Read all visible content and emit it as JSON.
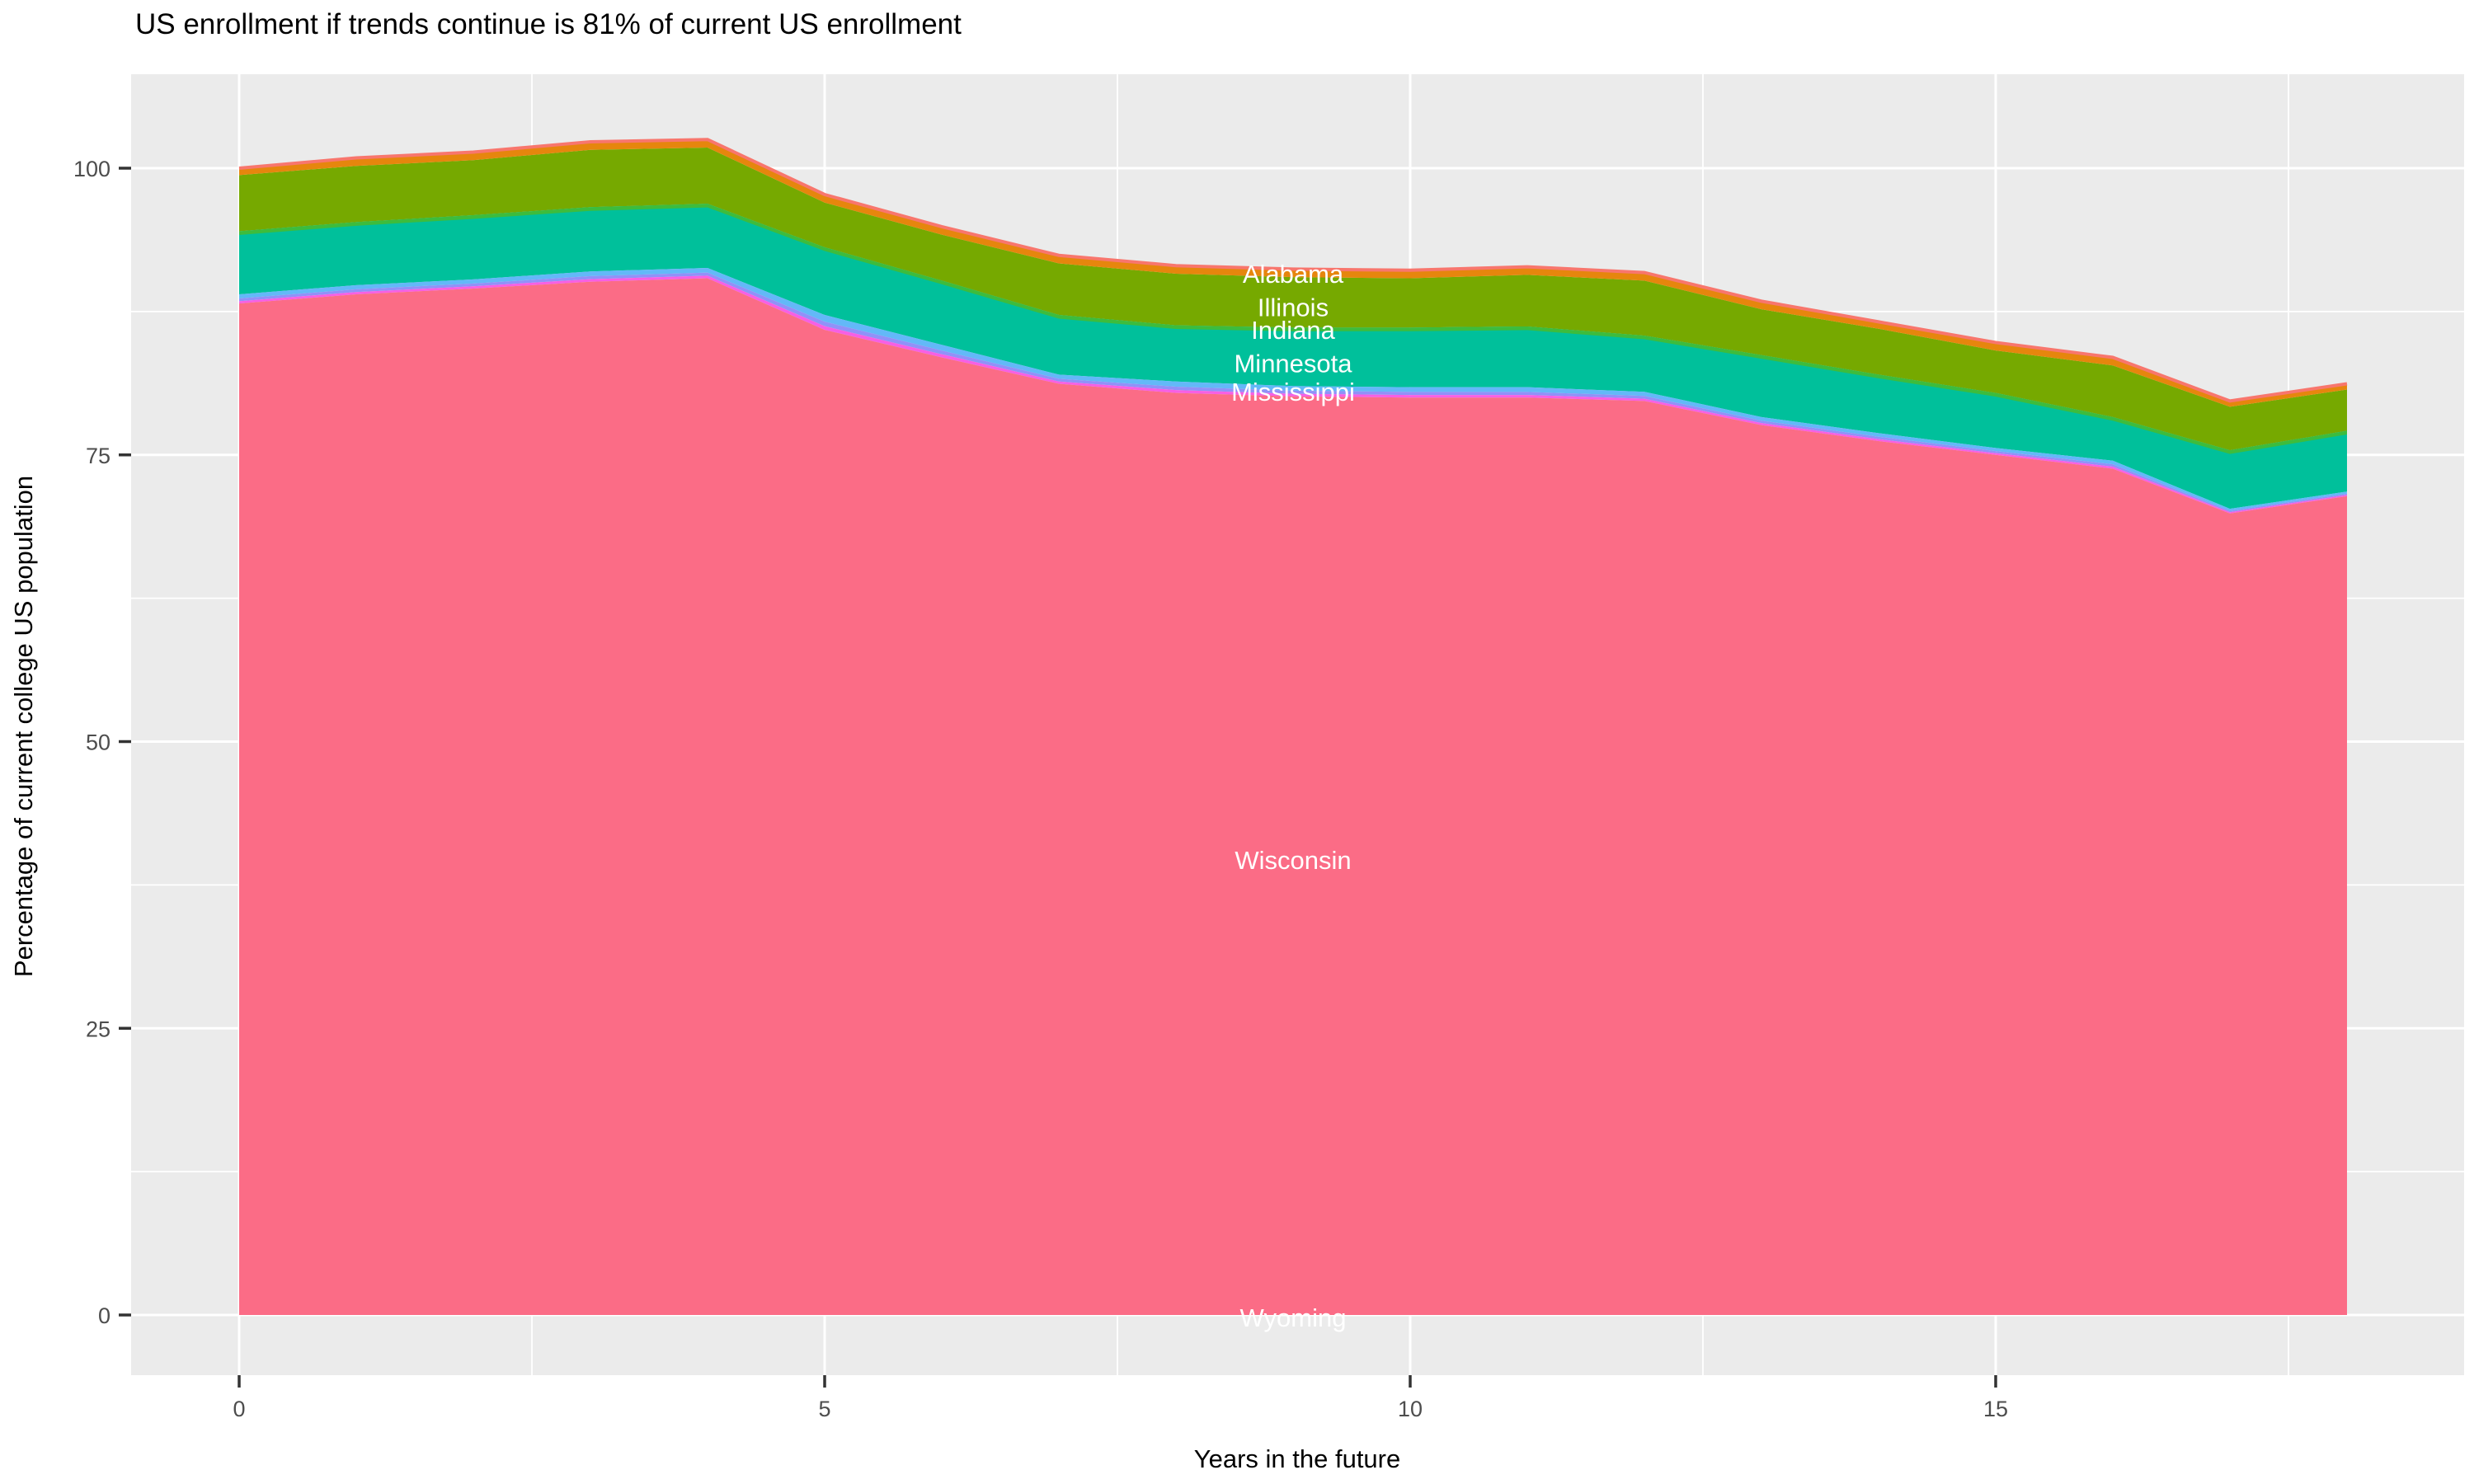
{
  "chart_data": {
    "type": "area",
    "variant": "stacked-area",
    "title": "US enrollment if trends continue is 81% of current US enrollment",
    "xlabel": "Years in the future",
    "ylabel": "Percentage of current college US population",
    "xlim": [
      -0.9,
      19.0
    ],
    "ylim": [
      -5.2,
      108.2
    ],
    "x_ticks": [
      0,
      5,
      10,
      15
    ],
    "x_minor_ticks": [
      2.5,
      7.5,
      12.5,
      17.5
    ],
    "y_ticks": [
      0,
      25,
      50,
      75,
      100
    ],
    "y_minor_ticks": [
      12.5,
      37.5,
      62.5,
      87.5
    ],
    "grid": "on",
    "legend": "none",
    "x": [
      0,
      1,
      2,
      3,
      4,
      5,
      6,
      7,
      8,
      9,
      10,
      11,
      12,
      13,
      14,
      15,
      16,
      17,
      18
    ],
    "boundaries": {
      "stack_top": [
        100.0,
        100.9,
        101.4,
        102.3,
        102.5,
        97.7,
        94.9,
        92.4,
        91.5,
        91.2,
        91.1,
        91.4,
        90.9,
        88.4,
        86.6,
        84.8,
        83.5,
        79.7,
        81.2
      ],
      "alabama_bottom": [
        99.4,
        100.2,
        100.7,
        101.6,
        101.8,
        97.0,
        94.2,
        91.7,
        90.8,
        90.5,
        90.4,
        90.7,
        90.2,
        87.7,
        86.0,
        84.1,
        82.8,
        79.2,
        80.7
      ],
      "illinois_bottom": [
        94.5,
        95.3,
        95.9,
        96.6,
        96.9,
        93.1,
        90.2,
        87.2,
        86.3,
        86.1,
        86.1,
        86.2,
        85.4,
        83.7,
        82.0,
        80.4,
        78.3,
        75.4,
        77.1
      ],
      "minnesota_bottom": [
        89.0,
        89.8,
        90.3,
        91.0,
        91.3,
        87.2,
        84.6,
        82.0,
        81.4,
        81.0,
        80.9,
        80.9,
        80.5,
        78.3,
        76.9,
        75.6,
        74.5,
        70.3,
        71.8
      ],
      "mississippi_bottom": [
        88.2,
        89.0,
        89.5,
        90.1,
        90.4,
        85.9,
        83.5,
        81.2,
        80.4,
        80.1,
        80.0,
        80.0,
        79.7,
        77.6,
        76.2,
        75.0,
        73.8,
        69.9,
        71.4
      ],
      "baseline": [
        0,
        0,
        0,
        0,
        0,
        0,
        0,
        0,
        0,
        0,
        0,
        0,
        0,
        0,
        0,
        0,
        0,
        0,
        0
      ]
    },
    "bands": [
      {
        "name": "alabama-band",
        "state": "Alabama",
        "color": "#E6860D",
        "top": "stack_top",
        "bottom": "alabama_bottom"
      },
      {
        "name": "illinois-band",
        "state": "Illinois",
        "color": "#76A900",
        "top": "alabama_bottom",
        "bottom": "illinois_bottom"
      },
      {
        "name": "indiana-stripe",
        "state": "Indiana",
        "color": "#3DBC3D",
        "top": "illinois_bottom",
        "bottom": "illinois_bottom"
      },
      {
        "name": "minnesota-band",
        "state": "Minnesota",
        "color": "#00C09B",
        "top": "illinois_bottom",
        "bottom": "minnesota_bottom"
      },
      {
        "name": "mississippi-band",
        "state": "Mississippi",
        "color": "#63B8F8",
        "top": "minnesota_bottom",
        "bottom": "mississippi_bottom"
      },
      {
        "name": "wisconsin-band",
        "state": "Wisconsin",
        "color": "#FB6C86",
        "top": "mississippi_bottom",
        "bottom": "baseline"
      },
      {
        "name": "wyoming-band",
        "state": "Wyoming",
        "color": "#FB6C86",
        "top": "baseline",
        "bottom": "baseline"
      }
    ],
    "state_labels": [
      {
        "label": "Alabama",
        "x": 9,
        "y": 90.8
      },
      {
        "label": "Illinois",
        "x": 9,
        "y": 87.9
      },
      {
        "label": "Indiana",
        "x": 9,
        "y": 85.9
      },
      {
        "label": "Minnesota",
        "x": 9,
        "y": 83.0
      },
      {
        "label": "Mississippi",
        "x": 9,
        "y": 80.5
      },
      {
        "label": "Wisconsin",
        "x": 9,
        "y": 39.7
      },
      {
        "label": "Wyoming",
        "x": 9,
        "y": -0.2
      }
    ],
    "colors": {
      "panel_background": "#EBEBEB",
      "gridline": "#FFFFFF",
      "orange_band": "#E6860D",
      "salmon_topline": "#F8766D",
      "olive_band": "#76A900",
      "green_hairline": "#3DBC3D",
      "teal_band": "#00C09B",
      "stripe_blue": "#63B8F8",
      "stripe_periwinkle": "#9191F8",
      "stripe_magenta": "#F75FE4",
      "pink_band": "#FB6C86",
      "tick_label_text": "#4D4D4D",
      "tick_mark": "#333333",
      "label_text": "#FFFFFF"
    }
  }
}
